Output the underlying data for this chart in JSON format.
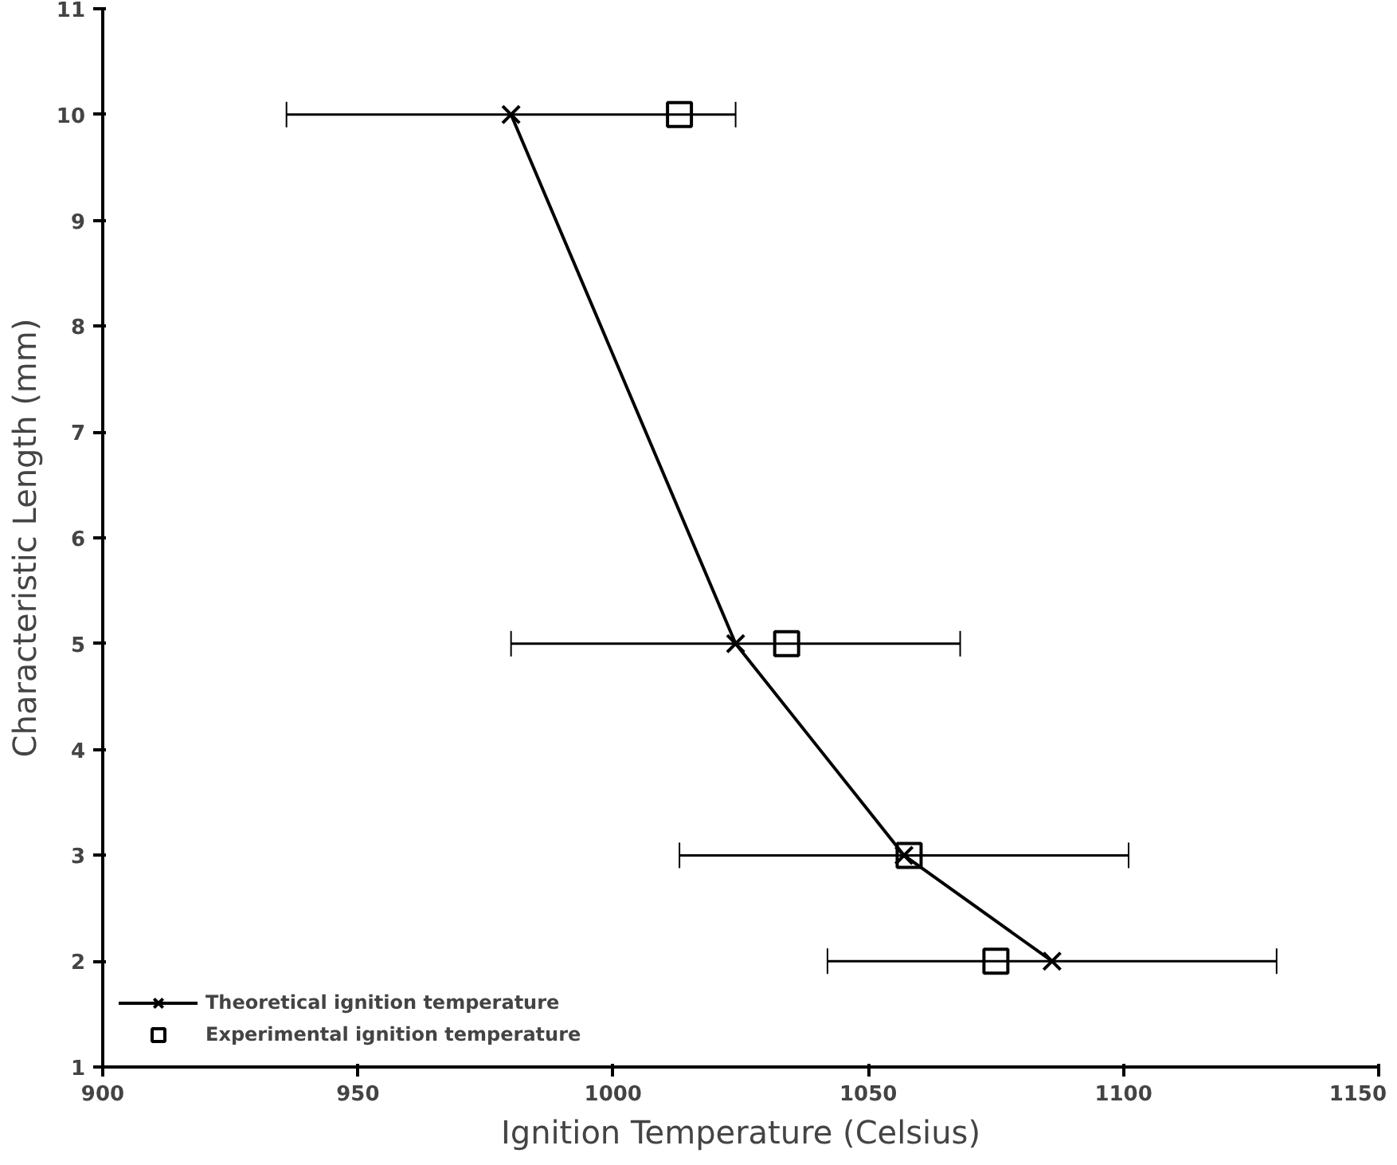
{
  "chart_data": {
    "type": "line",
    "xlabel": "Ignition Temperature (Celsius)",
    "ylabel": "Characteristic Length (mm)",
    "xlim": [
      900,
      1150
    ],
    "xticks": [
      900,
      950,
      1000,
      1050,
      1100,
      1150
    ],
    "ylim": [
      1,
      11
    ],
    "yticks": [
      1,
      2,
      3,
      4,
      5,
      6,
      7,
      8,
      9,
      10,
      11
    ],
    "grid": false,
    "legend": "bottom left",
    "series": [
      {
        "name": "Theoretical ignition temperature",
        "marker": "cross",
        "line_style": "solid",
        "color": "#000000",
        "x": [
          980,
          1024,
          1057,
          1086
        ],
        "values": [
          10,
          5,
          3,
          2
        ],
        "xerrors": [
          44,
          44,
          44,
          44
        ]
      },
      {
        "name": "Experimental ignition temperature",
        "type": "scatter",
        "marker": "square",
        "color": "#000000",
        "x": [
          1013,
          1034,
          1058,
          1075
        ],
        "values": [
          10,
          5,
          3,
          2
        ]
      }
    ]
  }
}
